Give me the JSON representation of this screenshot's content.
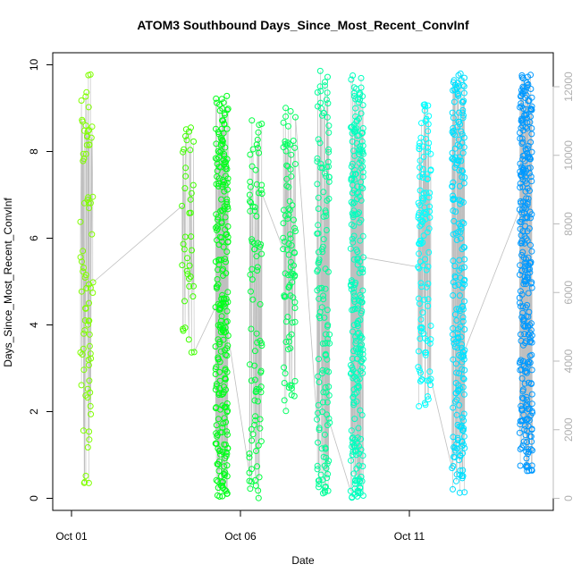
{
  "chart_data": {
    "type": "scatter",
    "title": "ATOM3 Southbound Days_Since_Most_Recent_ConvInf",
    "xlabel": "Date",
    "ylabel": "Days_Since_Most_Recent_ConvInf",
    "x_tick_labels": [
      "Oct 01",
      "Oct 06",
      "Oct 11"
    ],
    "x_ticks": [
      "2023-10-01",
      "2023-10-06",
      "2023-10-11"
    ],
    "xlim": [
      "2023-10-01",
      "2023-10-15"
    ],
    "ylim": [
      0,
      10
    ],
    "y_ticks": [
      0,
      2,
      4,
      6,
      8,
      10
    ],
    "secondary_y": {
      "ticks": [
        0,
        2000,
        4000,
        6000,
        8000,
        10000,
        12000
      ],
      "ylim": [
        0,
        12000
      ],
      "color": "#bbbbbb"
    },
    "grey_line_color": "#bfbfbf",
    "series": [
      {
        "date": "2023-10-01",
        "color": "#80ff00",
        "n": 80,
        "ymin": 0.3,
        "ymax": 9.8
      },
      {
        "date": "2023-10-04",
        "color": "#40ff00",
        "n": 40,
        "ymin": 3.2,
        "ymax": 8.6
      },
      {
        "date": "2023-10-05",
        "color": "#00ff1a",
        "n": 260,
        "ymin": 0.0,
        "ymax": 9.3
      },
      {
        "date": "2023-10-06",
        "color": "#00ff40",
        "n": 90,
        "ymin": 0.0,
        "ymax": 9.0
      },
      {
        "date": "2023-10-07",
        "color": "#00ff60",
        "n": 90,
        "ymin": 2.0,
        "ymax": 9.2
      },
      {
        "date": "2023-10-08",
        "color": "#00ff99",
        "n": 140,
        "ymin": 0.1,
        "ymax": 9.9
      },
      {
        "date": "2023-10-09",
        "color": "#00ffbf",
        "n": 250,
        "ymin": 0.0,
        "ymax": 9.8
      },
      {
        "date": "2023-10-11",
        "color": "#00ffff",
        "n": 120,
        "ymin": 2.1,
        "ymax": 9.1
      },
      {
        "date": "2023-10-12",
        "color": "#00e0ff",
        "n": 220,
        "ymin": 0.1,
        "ymax": 9.8
      },
      {
        "date": "2023-10-14",
        "color": "#0099ff",
        "n": 300,
        "ymin": 0.6,
        "ymax": 9.8
      }
    ]
  }
}
